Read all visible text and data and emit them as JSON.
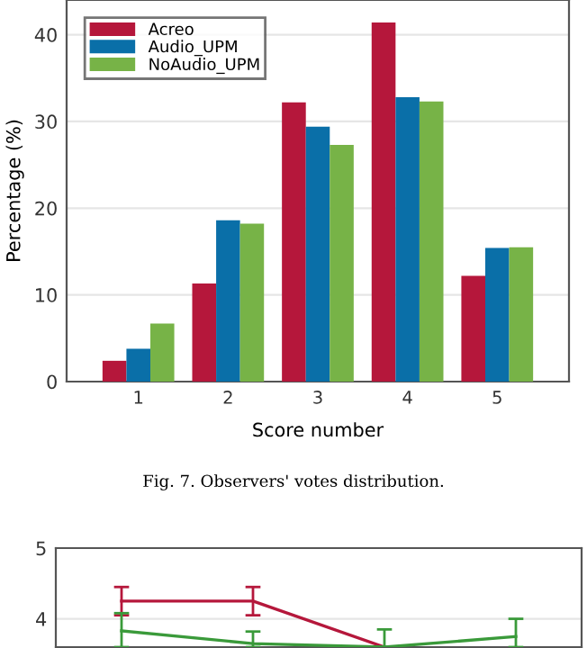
{
  "chart_data": [
    {
      "type": "bar",
      "xlabel": "Score number",
      "ylabel": "Percentage (%)",
      "categories": [
        "1",
        "2",
        "3",
        "4",
        "5"
      ],
      "series": [
        {
          "name": "Acreo",
          "color": "#b5173b",
          "values": [
            2.4,
            11.3,
            32.2,
            41.4,
            12.2
          ]
        },
        {
          "name": "Audio_UPM",
          "color": "#0a6fa8",
          "values": [
            3.8,
            18.6,
            29.4,
            32.8,
            15.4
          ]
        },
        {
          "name": "NoAudio_UPM",
          "color": "#77b347",
          "values": [
            6.7,
            18.2,
            27.3,
            32.3,
            15.5
          ]
        }
      ],
      "ylim": [
        0,
        44
      ],
      "yticks": [
        0,
        10,
        20,
        30,
        40
      ],
      "grid": "y",
      "legend": "top left",
      "annotations": [
        "Fig. 7. Observers' votes distribution."
      ]
    },
    {
      "type": "line",
      "categories": [
        null,
        null,
        null,
        null
      ],
      "marker": "none",
      "line_style": "solid",
      "series": [
        {
          "color": "#b5173b",
          "values": [
            4.25,
            4.25,
            3.6,
            null
          ],
          "errors": [
            0.2,
            0.2,
            null,
            null
          ]
        },
        {
          "color": "#3a9a3a",
          "values": [
            3.83,
            3.65,
            3.6,
            3.75
          ],
          "errors": [
            [
              3.6,
              4.08
            ],
            [
              3.6,
              3.82
            ],
            [
              3.6,
              3.85
            ],
            [
              3.6,
              4.0
            ]
          ]
        }
      ],
      "ylim": [
        3.6,
        5
      ],
      "yticks": [
        4,
        5
      ],
      "grid": "y",
      "legend": false
    }
  ]
}
